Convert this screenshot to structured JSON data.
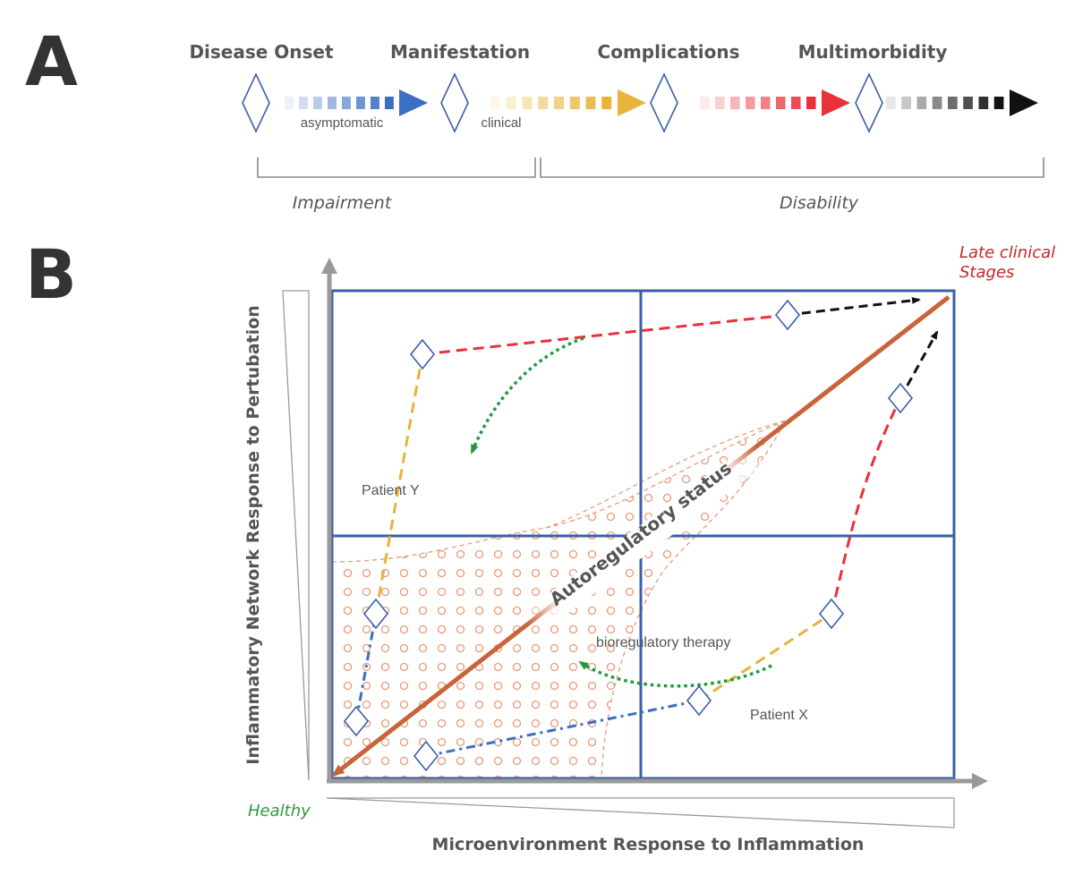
{
  "panel_a": {
    "letter": "A",
    "stages": [
      "Disease Onset",
      "Manifestation",
      "Complications",
      "Multimorbidity"
    ],
    "arrow_labels": [
      "asymptomatic",
      "clinical"
    ],
    "brackets": [
      "Impairment",
      "Disability"
    ],
    "arrow_colors": [
      "#3a6fc4",
      "#e8b43a",
      "#e8313a",
      "#111111"
    ]
  },
  "panel_b": {
    "letter": "B",
    "y_axis_label": "Inflammatory Network Response to Pertubation",
    "x_axis_label": "Microenvironment Response to Inflammation",
    "healthy_label": "Healthy",
    "late_label_line1": "Late clinical",
    "late_label_line2": "Stages",
    "autoregulatory_label": "Autoregulatory status",
    "patient_y_label": "Patient Y",
    "patient_x_label": "Patient X",
    "therapy_label": "bioregulatory therapy",
    "colors": {
      "grid": "#3a5fa8",
      "axis": "#9a9a9a",
      "trend": "#c8643a",
      "dots": "#e89a78",
      "healthy": "#2e9a3c",
      "late": "#c0282a",
      "therapy": "#1e9a3c",
      "blue_path": "#3a6fc4",
      "yellow_path": "#e8b43a",
      "red_path": "#e8313a",
      "black_path": "#111111"
    }
  }
}
